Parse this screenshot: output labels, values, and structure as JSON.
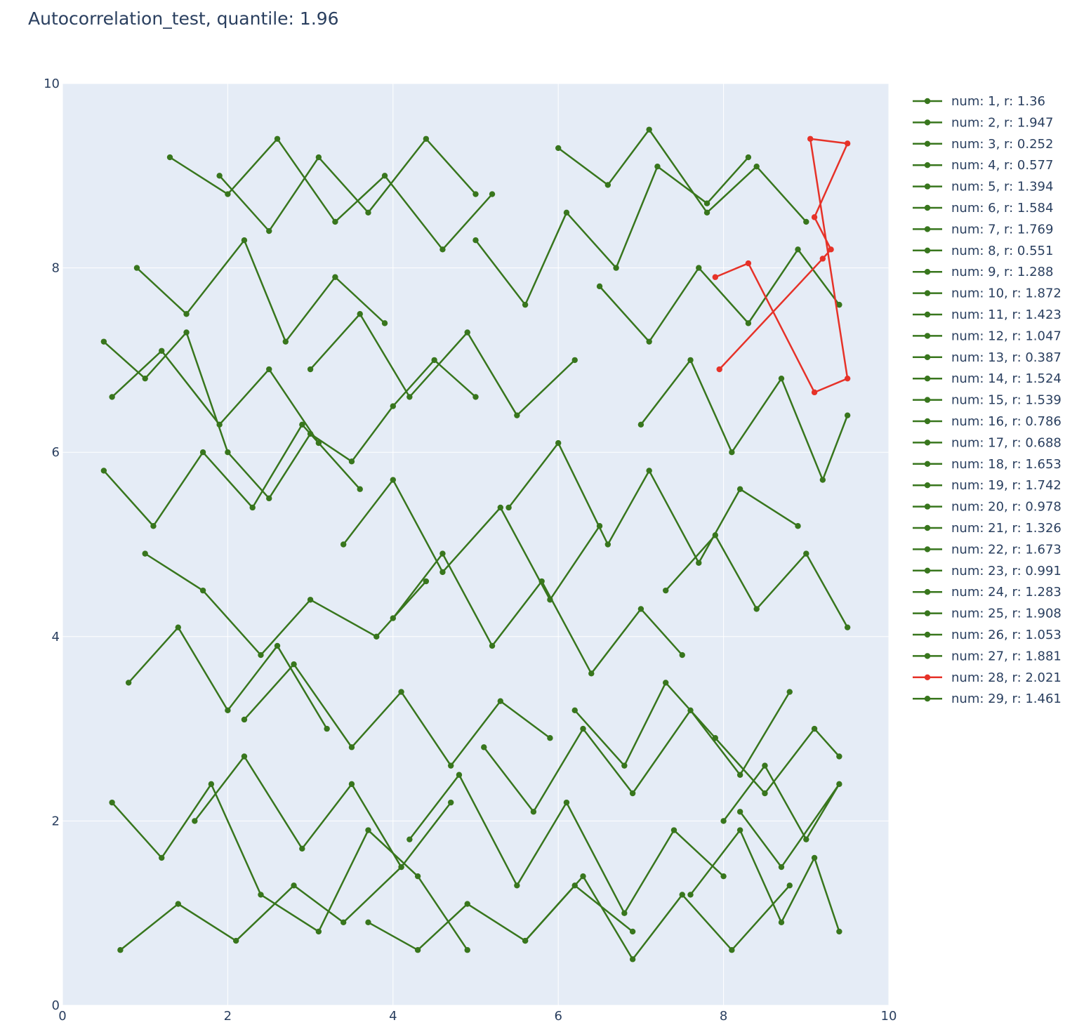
{
  "chart_data": {
    "type": "line",
    "title": "Autocorrelation_test, quantile: 1.96",
    "xlabel": "",
    "ylabel": "",
    "xlim": [
      0,
      10
    ],
    "ylim": [
      0,
      10
    ],
    "xticks": [
      0,
      2,
      4,
      6,
      8,
      10
    ],
    "yticks": [
      0,
      2,
      4,
      6,
      8,
      10
    ],
    "grid": true,
    "legend_position": "right",
    "colors": {
      "normal": "#38761d",
      "flagged": "#e63228",
      "plot_bg": "#e5ecf6",
      "grid": "#ffffff",
      "text": "#2a3f5f"
    },
    "series": [
      {
        "name": "num: 1, r: 1.36",
        "flagged": false,
        "x": [
          0.5,
          1.0,
          1.5,
          2.0,
          2.5,
          3.0,
          3.5,
          4.0,
          4.5,
          5.0
        ],
        "y": [
          7.2,
          6.8,
          7.3,
          6.0,
          5.5,
          6.2,
          5.9,
          6.5,
          7.0,
          6.6
        ]
      },
      {
        "name": "num: 2, r: 1.947",
        "flagged": false,
        "x": [
          0.6,
          1.2,
          1.8,
          2.4,
          3.1,
          3.7,
          4.3,
          4.9
        ],
        "y": [
          2.2,
          1.6,
          2.4,
          1.2,
          0.8,
          1.9,
          1.4,
          0.6
        ]
      },
      {
        "name": "num: 3, r: 0.252",
        "flagged": false,
        "x": [
          5.0,
          5.6,
          6.1,
          6.7,
          7.2,
          7.8,
          8.3
        ],
        "y": [
          8.3,
          7.6,
          8.6,
          8.0,
          9.1,
          8.7,
          9.2
        ]
      },
      {
        "name": "num: 4, r: 0.577",
        "flagged": false,
        "x": [
          1.0,
          1.7,
          2.4,
          3.0,
          3.8,
          4.4
        ],
        "y": [
          4.9,
          4.5,
          3.8,
          4.4,
          4.0,
          4.6
        ]
      },
      {
        "name": "num: 5, r: 1.394",
        "flagged": false,
        "x": [
          6.2,
          6.8,
          7.3,
          7.9,
          8.5,
          9.1,
          9.4
        ],
        "y": [
          3.2,
          2.6,
          3.5,
          2.9,
          2.3,
          3.0,
          2.7
        ]
      },
      {
        "name": "num: 6, r: 1.584",
        "flagged": false,
        "x": [
          1.3,
          2.0,
          2.6,
          3.3,
          3.9,
          4.6,
          5.2
        ],
        "y": [
          9.2,
          8.8,
          9.4,
          8.5,
          9.0,
          8.2,
          8.8
        ]
      },
      {
        "name": "num: 7, r: 1.769",
        "flagged": false,
        "x": [
          5.4,
          6.0,
          6.6,
          7.1,
          7.7,
          8.2,
          8.9
        ],
        "y": [
          5.4,
          6.1,
          5.0,
          5.8,
          4.8,
          5.6,
          5.2
        ]
      },
      {
        "name": "num: 8, r: 0.551",
        "flagged": false,
        "x": [
          0.7,
          1.4,
          2.1,
          2.8,
          3.4,
          4.1
        ],
        "y": [
          0.6,
          1.1,
          0.7,
          1.3,
          0.9,
          1.5
        ]
      },
      {
        "name": "num: 9, r: 1.288",
        "flagged": false,
        "x": [
          4.2,
          4.8,
          5.5,
          6.1,
          6.8,
          7.4,
          8.0
        ],
        "y": [
          1.8,
          2.5,
          1.3,
          2.2,
          1.0,
          1.9,
          1.4
        ]
      },
      {
        "name": "num: 10, r: 1.872",
        "flagged": false,
        "x": [
          7.0,
          7.6,
          8.1,
          8.7,
          9.2,
          9.5
        ],
        "y": [
          6.3,
          7.0,
          6.0,
          6.8,
          5.7,
          6.4
        ]
      },
      {
        "name": "num: 11, r: 1.423",
        "flagged": false,
        "x": [
          2.2,
          2.8,
          3.5,
          4.1,
          4.7,
          5.3,
          5.9
        ],
        "y": [
          3.1,
          3.7,
          2.8,
          3.4,
          2.6,
          3.3,
          2.9
        ]
      },
      {
        "name": "num: 12, r: 1.047",
        "flagged": false,
        "x": [
          6.0,
          6.6,
          7.1,
          7.8,
          8.4,
          9.0
        ],
        "y": [
          9.3,
          8.9,
          9.5,
          8.6,
          9.1,
          8.5
        ]
      },
      {
        "name": "num: 13, r: 0.387",
        "flagged": false,
        "x": [
          0.9,
          1.5,
          2.2,
          2.7,
          3.3,
          3.9
        ],
        "y": [
          8.0,
          7.5,
          8.3,
          7.2,
          7.9,
          7.4
        ]
      },
      {
        "name": "num: 14, r: 1.524",
        "flagged": false,
        "x": [
          4.0,
          4.6,
          5.2,
          5.8,
          6.4,
          7.0,
          7.5
        ],
        "y": [
          4.2,
          4.9,
          3.9,
          4.6,
          3.6,
          4.3,
          3.8
        ]
      },
      {
        "name": "num: 15, r: 1.539",
        "flagged": false,
        "x": [
          7.6,
          8.2,
          8.7,
          9.1,
          9.4
        ],
        "y": [
          1.2,
          1.9,
          0.9,
          1.6,
          0.8
        ]
      },
      {
        "name": "num: 16, r: 0.786",
        "flagged": false,
        "x": [
          0.5,
          1.1,
          1.7,
          2.3,
          2.9,
          3.6
        ],
        "y": [
          5.8,
          5.2,
          6.0,
          5.4,
          6.3,
          5.6
        ]
      },
      {
        "name": "num: 17, r: 0.688",
        "flagged": false,
        "x": [
          3.0,
          3.6,
          4.2,
          4.9,
          5.5,
          6.2
        ],
        "y": [
          6.9,
          7.5,
          6.6,
          7.3,
          6.4,
          7.0
        ]
      },
      {
        "name": "num: 18, r: 1.653",
        "flagged": false,
        "x": [
          5.6,
          6.3,
          6.9,
          7.5,
          8.1,
          8.8
        ],
        "y": [
          0.7,
          1.4,
          0.5,
          1.2,
          0.6,
          1.3
        ]
      },
      {
        "name": "num: 19, r: 1.742",
        "flagged": false,
        "x": [
          1.6,
          2.2,
          2.9,
          3.5,
          4.1,
          4.7
        ],
        "y": [
          2.0,
          2.7,
          1.7,
          2.4,
          1.5,
          2.2
        ]
      },
      {
        "name": "num: 20, r: 0.978",
        "flagged": false,
        "x": [
          6.5,
          7.1,
          7.7,
          8.3,
          8.9,
          9.4
        ],
        "y": [
          7.8,
          7.2,
          8.0,
          7.4,
          8.2,
          7.6
        ]
      },
      {
        "name": "num: 21, r: 1.326",
        "flagged": false,
        "x": [
          0.8,
          1.4,
          2.0,
          2.6,
          3.2
        ],
        "y": [
          3.5,
          4.1,
          3.2,
          3.9,
          3.0
        ]
      },
      {
        "name": "num: 22, r: 1.673",
        "flagged": false,
        "x": [
          3.7,
          4.3,
          4.9,
          5.6,
          6.2,
          6.9
        ],
        "y": [
          0.9,
          0.6,
          1.1,
          0.7,
          1.3,
          0.8
        ]
      },
      {
        "name": "num: 23, r: 0.991",
        "flagged": false,
        "x": [
          7.3,
          7.9,
          8.4,
          9.0,
          9.5
        ],
        "y": [
          4.5,
          5.1,
          4.3,
          4.9,
          4.1
        ]
      },
      {
        "name": "num: 24, r: 1.283",
        "flagged": false,
        "x": [
          1.9,
          2.5,
          3.1,
          3.7,
          4.4,
          5.0
        ],
        "y": [
          9.0,
          8.4,
          9.2,
          8.6,
          9.4,
          8.8
        ]
      },
      {
        "name": "num: 25, r: 1.908",
        "flagged": false,
        "x": [
          5.1,
          5.7,
          6.3,
          6.9,
          7.6,
          8.2,
          8.8
        ],
        "y": [
          2.8,
          2.1,
          3.0,
          2.3,
          3.2,
          2.5,
          3.4
        ]
      },
      {
        "name": "num: 26, r: 1.053",
        "flagged": false,
        "x": [
          0.6,
          1.2,
          1.9,
          2.5,
          3.1
        ],
        "y": [
          6.6,
          7.1,
          6.3,
          6.9,
          6.1
        ]
      },
      {
        "name": "num: 27, r: 1.881",
        "flagged": false,
        "x": [
          3.4,
          4.0,
          4.6,
          5.3,
          5.9,
          6.5
        ],
        "y": [
          5.0,
          5.7,
          4.7,
          5.4,
          4.4,
          5.2
        ]
      },
      {
        "name": "num: 28, r: 2.021",
        "flagged": true,
        "x": [
          7.9,
          8.3,
          9.1,
          9.5,
          9.05,
          9.5,
          9.1,
          9.3,
          9.2,
          7.95
        ],
        "y": [
          7.9,
          8.05,
          6.65,
          6.8,
          9.4,
          9.35,
          8.55,
          8.2,
          8.1,
          6.9
        ]
      },
      {
        "name": "num: 29, r: 1.461",
        "flagged": false,
        "x": [
          8.0,
          8.5,
          9.0,
          9.4,
          8.7,
          8.2
        ],
        "y": [
          2.0,
          2.6,
          1.8,
          2.4,
          1.5,
          2.1
        ]
      }
    ]
  }
}
